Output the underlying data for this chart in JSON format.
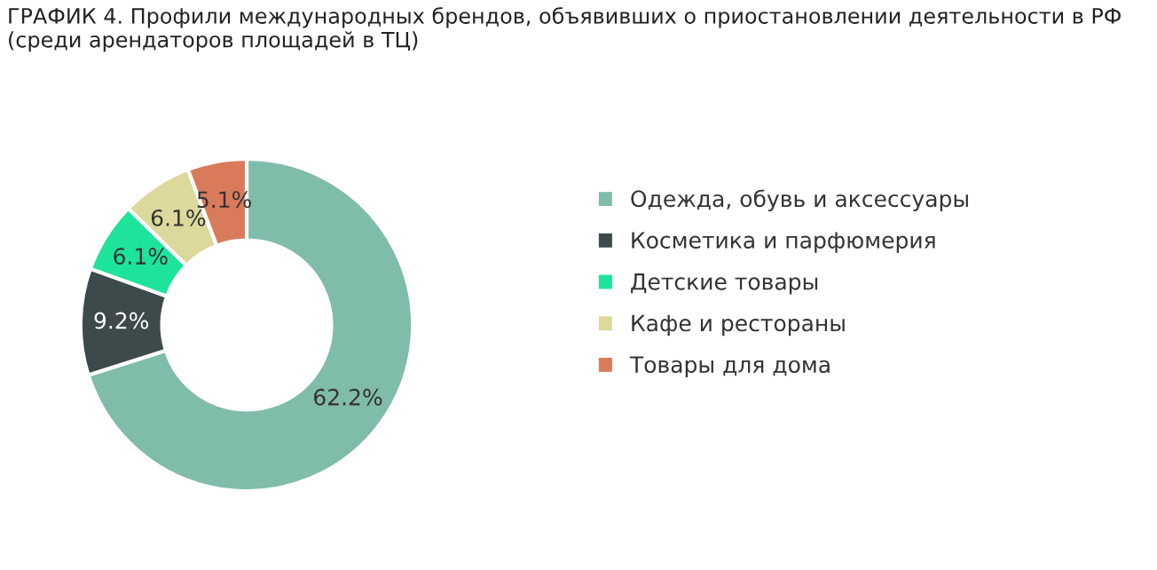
{
  "chart_data": {
    "type": "donut",
    "title": "ГРАФИК 4. Профили международных брендов, объявивших о приостановлении деятельности в РФ (среди арендаторов площадей в ТЦ)",
    "categories": [
      "Одежда, обувь и аксессуары",
      "Косметика и парфюмерия",
      "Детские товары",
      "Кафе и рестораны",
      "Товары для дома"
    ],
    "values": [
      62.2,
      9.2,
      6.1,
      6.1,
      5.1
    ],
    "colors": [
      "#80bcaa",
      "#3d4a4b",
      "#1de39b",
      "#ddd89b",
      "#d97a5a"
    ],
    "value_labels": [
      "62.2%",
      "9.2%",
      "6.1%",
      "6.1%",
      "5.1%"
    ],
    "legend": "right"
  }
}
